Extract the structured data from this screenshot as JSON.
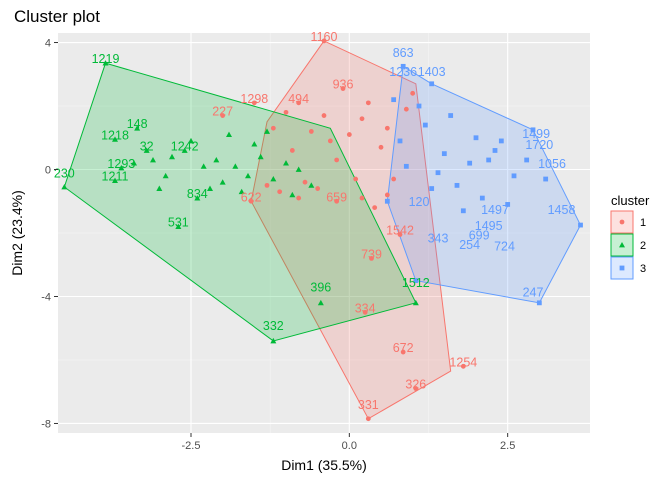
{
  "chart_data": {
    "type": "scatter",
    "title": "Cluster plot",
    "xlabel": "Dim1 (35.5%)",
    "ylabel": "Dim2 (23.4%)",
    "xlim": [
      -4.6,
      3.8
    ],
    "ylim": [
      -8.3,
      4.3
    ],
    "xticks": [
      {
        "value": -2.5,
        "label": "-2.5"
      },
      {
        "value": 0,
        "label": "0.0"
      },
      {
        "value": 2.5,
        "label": "2.5"
      }
    ],
    "yticks": [
      {
        "value": 4,
        "label": "4"
      },
      {
        "value": 0,
        "label": "0"
      },
      {
        "value": -4,
        "label": "-4"
      },
      {
        "value": -8,
        "label": "-8"
      }
    ],
    "grid": true,
    "legend": {
      "title": "cluster",
      "position": "right"
    },
    "series": [
      {
        "name": "1",
        "color": "#F8766D",
        "marker": "circle",
        "hull": [
          [
            -0.4,
            4.05
          ],
          [
            1.05,
            2.7
          ],
          [
            1.6,
            -6.35
          ],
          [
            0.3,
            -7.85
          ],
          [
            -1.55,
            -1.0
          ],
          [
            -1.3,
            1.5
          ]
        ],
        "labeled_points": [
          {
            "label": "1160",
            "x": -0.4,
            "y": 4.05
          },
          {
            "label": "936",
            "x": -0.1,
            "y": 2.55
          },
          {
            "label": "494",
            "x": -0.8,
            "y": 2.1
          },
          {
            "label": "1298",
            "x": -1.5,
            "y": 2.1
          },
          {
            "label": "227",
            "x": -2.0,
            "y": 1.7
          },
          {
            "label": "622",
            "x": -1.55,
            "y": -1.0
          },
          {
            "label": "659",
            "x": -0.2,
            "y": -1.0
          },
          {
            "label": "1542",
            "x": 0.8,
            "y": -2.05
          },
          {
            "label": "739",
            "x": 0.35,
            "y": -2.8
          },
          {
            "label": "334",
            "x": 0.25,
            "y": -4.5
          },
          {
            "label": "672",
            "x": 0.85,
            "y": -5.75
          },
          {
            "label": "1254",
            "x": 1.8,
            "y": -6.2
          },
          {
            "label": "326",
            "x": 1.05,
            "y": -6.9
          },
          {
            "label": "331",
            "x": 0.3,
            "y": -7.55
          }
        ],
        "points": [
          [
            -0.4,
            4.05
          ],
          [
            -0.1,
            2.55
          ],
          [
            -0.8,
            2.1
          ],
          [
            -1.5,
            2.1
          ],
          [
            -2.0,
            1.7
          ],
          [
            -1.55,
            -1.0
          ],
          [
            -0.2,
            -1.0
          ],
          [
            0.8,
            -2.05
          ],
          [
            0.35,
            -2.8
          ],
          [
            0.25,
            -4.5
          ],
          [
            0.85,
            -5.75
          ],
          [
            1.8,
            -6.2
          ],
          [
            1.05,
            -6.9
          ],
          [
            0.3,
            -7.85
          ],
          [
            -0.6,
            1.2
          ],
          [
            -0.3,
            0.9
          ],
          [
            -0.9,
            0.6
          ],
          [
            0.2,
            1.6
          ],
          [
            0.5,
            0.7
          ],
          [
            -0.7,
            -0.4
          ],
          [
            -1.1,
            -0.7
          ],
          [
            0.1,
            -0.3
          ],
          [
            0.6,
            -0.8
          ],
          [
            -0.4,
            1.7
          ],
          [
            0.3,
            2.1
          ],
          [
            -1.3,
            -0.5
          ],
          [
            -0.8,
            -0.9
          ],
          [
            0.4,
            -1.2
          ],
          [
            0.7,
            -0.3
          ],
          [
            -0.2,
            0.3
          ],
          [
            0.0,
            1.1
          ],
          [
            -1.2,
            1.3
          ],
          [
            0.9,
            1.9
          ],
          [
            1.0,
            2.4
          ],
          [
            -0.5,
            -0.6
          ],
          [
            0.2,
            -0.9
          ],
          [
            -1.0,
            1.8
          ],
          [
            0.6,
            1.3
          ]
        ]
      },
      {
        "name": "2",
        "color": "#00BA38",
        "marker": "triangle",
        "hull": [
          [
            -3.85,
            3.35
          ],
          [
            -0.3,
            1.3
          ],
          [
            1.05,
            -4.2
          ],
          [
            -1.2,
            -5.4
          ],
          [
            -4.5,
            -0.55
          ]
        ],
        "labeled_points": [
          {
            "label": "1219",
            "x": -3.85,
            "y": 3.35
          },
          {
            "label": "148",
            "x": -3.35,
            "y": 1.3
          },
          {
            "label": "1218",
            "x": -3.7,
            "y": 0.95
          },
          {
            "label": "32",
            "x": -3.2,
            "y": 0.6
          },
          {
            "label": "1293",
            "x": -3.6,
            "y": 0.05
          },
          {
            "label": "1211",
            "x": -3.7,
            "y": -0.35
          },
          {
            "label": "230",
            "x": -4.5,
            "y": -0.25
          },
          {
            "label": "1242",
            "x": -2.6,
            "y": 0.6
          },
          {
            "label": "834",
            "x": -2.4,
            "y": -0.9
          },
          {
            "label": "531",
            "x": -2.7,
            "y": -1.8
          },
          {
            "label": "396",
            "x": -0.45,
            "y": -3.85
          },
          {
            "label": "1512",
            "x": 1.05,
            "y": -3.7
          },
          {
            "label": "332",
            "x": -1.2,
            "y": -5.05
          }
        ],
        "points": [
          [
            -3.85,
            3.35
          ],
          [
            -3.35,
            1.3
          ],
          [
            -3.7,
            0.95
          ],
          [
            -3.2,
            0.6
          ],
          [
            -3.6,
            0.05
          ],
          [
            -3.7,
            -0.35
          ],
          [
            -4.5,
            -0.55
          ],
          [
            -2.6,
            0.6
          ],
          [
            -2.4,
            -0.9
          ],
          [
            -2.7,
            -1.8
          ],
          [
            -0.45,
            -4.2
          ],
          [
            1.05,
            -4.2
          ],
          [
            -1.2,
            -5.4
          ],
          [
            -2.1,
            0.3
          ],
          [
            -1.8,
            0.1
          ],
          [
            -1.6,
            -0.2
          ],
          [
            -2.3,
            0.1
          ],
          [
            -1.4,
            0.4
          ],
          [
            -1.0,
            0.2
          ],
          [
            -2.9,
            -0.2
          ],
          [
            -3.1,
            0.3
          ],
          [
            -2.0,
            -0.4
          ],
          [
            -1.2,
            -0.3
          ],
          [
            -0.8,
            0.0
          ],
          [
            -2.5,
            0.9
          ],
          [
            -1.9,
            1.1
          ],
          [
            -1.5,
            0.8
          ],
          [
            -3.0,
            -0.6
          ],
          [
            -2.2,
            -0.6
          ],
          [
            -0.6,
            -0.5
          ],
          [
            -1.3,
            1.2
          ],
          [
            -2.8,
            0.4
          ],
          [
            -1.7,
            -0.7
          ],
          [
            -0.9,
            -0.8
          ],
          [
            -3.4,
            0.2
          ]
        ]
      },
      {
        "name": "3",
        "color": "#619CFF",
        "marker": "square",
        "hull": [
          [
            0.85,
            3.25
          ],
          [
            1.3,
            2.7
          ],
          [
            2.9,
            1.25
          ],
          [
            3.65,
            -1.75
          ],
          [
            3.0,
            -4.2
          ],
          [
            1.05,
            -3.5
          ],
          [
            0.6,
            -1.0
          ]
        ],
        "labeled_points": [
          {
            "label": "863",
            "x": 0.85,
            "y": 3.55
          },
          {
            "label": "1236",
            "x": 0.85,
            "y": 2.95
          },
          {
            "label": "1403",
            "x": 1.3,
            "y": 2.95
          },
          {
            "label": "1499",
            "x": 2.95,
            "y": 1.0
          },
          {
            "label": "1720",
            "x": 3.0,
            "y": 0.65
          },
          {
            "label": "1056",
            "x": 3.2,
            "y": 0.05
          },
          {
            "label": "120",
            "x": 1.1,
            "y": -1.15
          },
          {
            "label": "1497",
            "x": 2.3,
            "y": -1.4
          },
          {
            "label": "1458",
            "x": 3.35,
            "y": -1.4
          },
          {
            "label": "343",
            "x": 1.4,
            "y": -2.3
          },
          {
            "label": "1495",
            "x": 2.2,
            "y": -1.9
          },
          {
            "label": "699",
            "x": 2.05,
            "y": -2.2
          },
          {
            "label": "724",
            "x": 2.45,
            "y": -2.55
          },
          {
            "label": "254",
            "x": 1.9,
            "y": -2.5
          },
          {
            "label": "247",
            "x": 2.9,
            "y": -4.0
          }
        ],
        "points": [
          [
            0.85,
            3.25
          ],
          [
            1.3,
            2.7
          ],
          [
            2.9,
            1.25
          ],
          [
            3.65,
            -1.75
          ],
          [
            3.0,
            -4.2
          ],
          [
            1.05,
            -3.5
          ],
          [
            0.6,
            -1.0
          ],
          [
            1.5,
            0.5
          ],
          [
            1.9,
            0.2
          ],
          [
            2.3,
            0.6
          ],
          [
            2.6,
            -0.2
          ],
          [
            1.2,
            1.4
          ],
          [
            0.8,
            0.9
          ],
          [
            1.7,
            -0.5
          ],
          [
            2.1,
            -0.9
          ],
          [
            2.8,
            0.3
          ],
          [
            1.4,
            -0.1
          ],
          [
            0.9,
            0.1
          ],
          [
            2.0,
            1.0
          ],
          [
            1.1,
            2.0
          ],
          [
            2.5,
            -1.1
          ],
          [
            3.1,
            -0.3
          ],
          [
            1.6,
            1.7
          ],
          [
            0.7,
            2.2
          ],
          [
            1.8,
            -1.3
          ],
          [
            2.4,
            0.9
          ],
          [
            1.3,
            -0.6
          ],
          [
            2.2,
            0.3
          ]
        ]
      }
    ]
  }
}
